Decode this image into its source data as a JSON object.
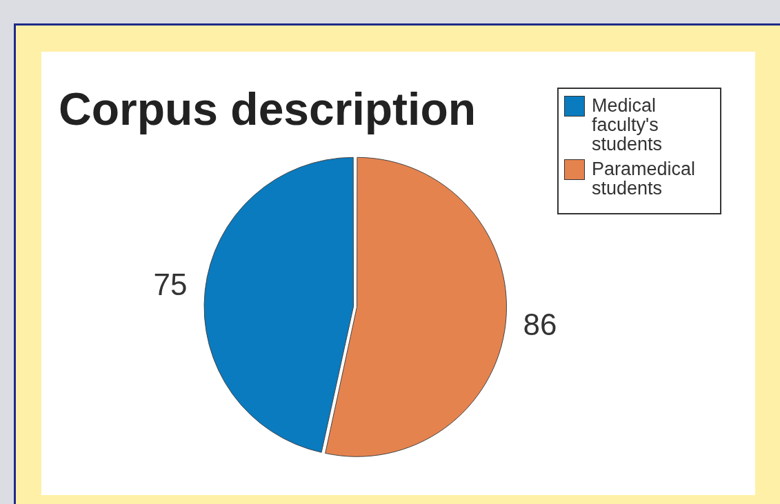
{
  "chart_data": {
    "type": "pie",
    "title": "Corpus description",
    "categories": [
      "Medical faculty's students",
      "Paramedical students"
    ],
    "values": [
      75,
      86
    ],
    "colors": [
      "#0a7bbf",
      "#e5834f"
    ],
    "data_labels": true,
    "legend": "top right"
  }
}
